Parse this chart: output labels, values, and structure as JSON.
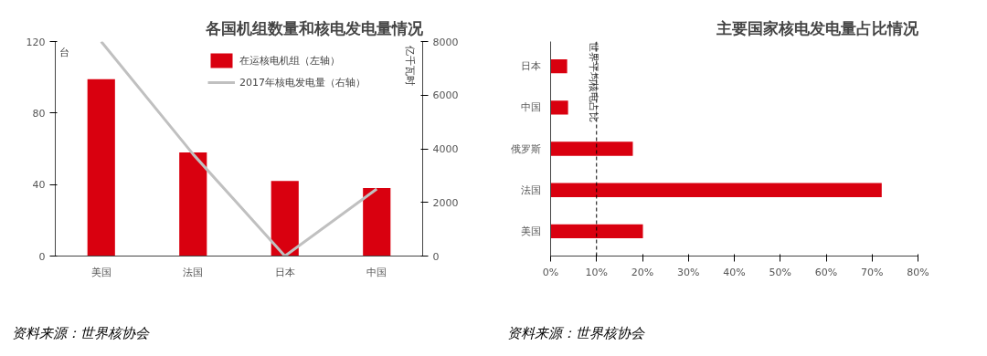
{
  "chart_data": [
    {
      "type": "bar",
      "title": "各国机组数量和核电发电量情况",
      "categories": [
        "美国",
        "法国",
        "日本",
        "中国"
      ],
      "ylabel": "台",
      "y2label": "亿千瓦时",
      "ylim": [
        0,
        120
      ],
      "yticks": [
        0,
        40,
        80,
        120
      ],
      "y2lim": [
        0,
        8000
      ],
      "y2ticks": [
        0,
        2000,
        4000,
        6000,
        8000
      ],
      "legend": "top right",
      "grid": false,
      "series": [
        {
          "name": "在运核电机组（左轴）",
          "type": "bar",
          "color": "#d9000f",
          "values": [
            99,
            58,
            42,
            38
          ]
        },
        {
          "name": "2017年核电发电量（右轴）",
          "type": "line",
          "axis": "y2",
          "color": "#c0c0c0",
          "values": [
            8000,
            3800,
            0,
            2500
          ]
        }
      ],
      "annotations": [
        "资料来源：世界核协会"
      ]
    },
    {
      "type": "bar",
      "orientation": "horizontal",
      "title": "主要国家核电发电量占比情况",
      "categories": [
        "日本",
        "中国",
        "俄罗斯",
        "法国",
        "美国"
      ],
      "values": [
        3.6,
        3.8,
        17.9,
        72.1,
        20.1
      ],
      "color": "#d9000f",
      "xlim": [
        0,
        80
      ],
      "xticks": [
        {
          "value": 0,
          "label": "0%"
        },
        {
          "value": 10,
          "label": "10%"
        },
        {
          "value": 20,
          "label": "20%"
        },
        {
          "value": 30,
          "label": "30%"
        },
        {
          "value": 40,
          "label": "40%"
        },
        {
          "value": 50,
          "label": "50%"
        },
        {
          "value": 60,
          "label": "60%"
        },
        {
          "value": 70,
          "label": "70%"
        },
        {
          "value": 80,
          "label": "80%"
        }
      ],
      "ref_lines": [
        {
          "axis": "x",
          "value": 10,
          "label": "世界平均核电占比",
          "line_style": "dashed",
          "color": "#000000"
        }
      ],
      "grid": false,
      "annotations": [
        "资料来源：世界核协会"
      ]
    }
  ]
}
